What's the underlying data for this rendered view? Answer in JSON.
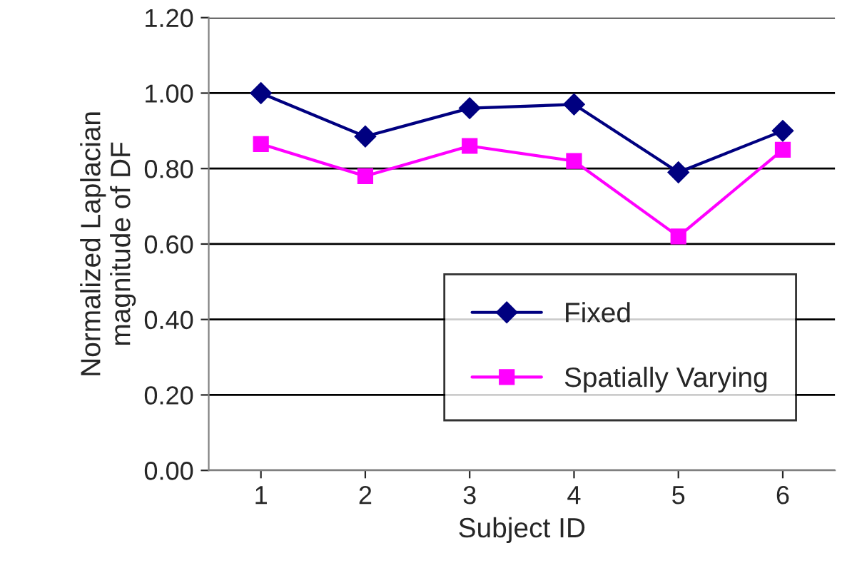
{
  "chart_data": {
    "type": "line",
    "xlabel": "Subject ID",
    "ylabel": "Normalized Laplacian\nmagnitude of DF",
    "categories": [
      "1",
      "2",
      "3",
      "4",
      "5",
      "6"
    ],
    "series": [
      {
        "name": "Fixed",
        "color": "#000080",
        "marker": "diamond",
        "values": [
          1.0,
          0.885,
          0.96,
          0.97,
          0.79,
          0.9
        ]
      },
      {
        "name": "Spatially Varying",
        "color": "#ff00ff",
        "marker": "square",
        "values": [
          0.865,
          0.78,
          0.86,
          0.82,
          0.62,
          0.85
        ]
      }
    ],
    "ylim": [
      0,
      1.2
    ],
    "yticks": [
      {
        "value": 0,
        "label": "0.00"
      },
      {
        "value": 0.2,
        "label": "0.20"
      },
      {
        "value": 0.4,
        "label": "0.40"
      },
      {
        "value": 0.6,
        "label": "0.60"
      },
      {
        "value": 0.8,
        "label": "0.80"
      },
      {
        "value": 1.0,
        "label": "1.00"
      },
      {
        "value": 1.2,
        "label": "1.20"
      }
    ],
    "grid": "y",
    "legend": "bottom right"
  }
}
